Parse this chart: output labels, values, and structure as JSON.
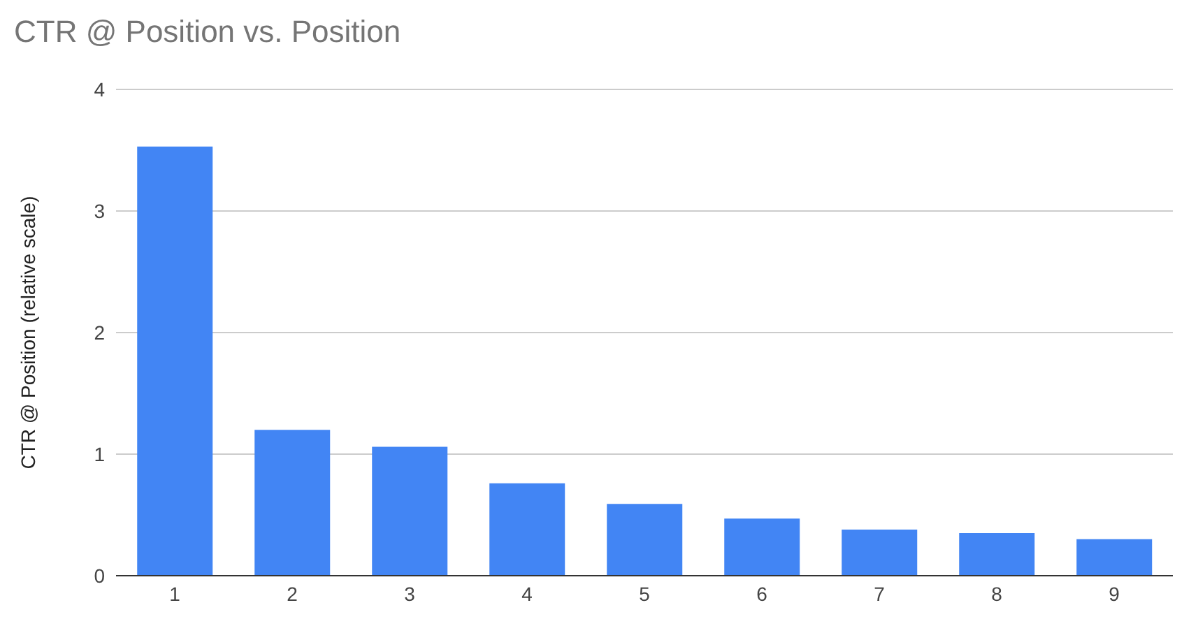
{
  "chart_data": {
    "type": "bar",
    "title": "CTR @ Position vs. Position",
    "ylabel": "CTR @ Position (relative scale)",
    "categories": [
      "1",
      "2",
      "3",
      "4",
      "5",
      "6",
      "7",
      "8",
      "9"
    ],
    "values": [
      3.53,
      1.2,
      1.06,
      0.76,
      0.59,
      0.47,
      0.38,
      0.35,
      0.3
    ],
    "color": "#4285f4",
    "ylim": [
      0,
      4
    ],
    "yticks": [
      0,
      1,
      2,
      3,
      4
    ],
    "grid": "y"
  }
}
